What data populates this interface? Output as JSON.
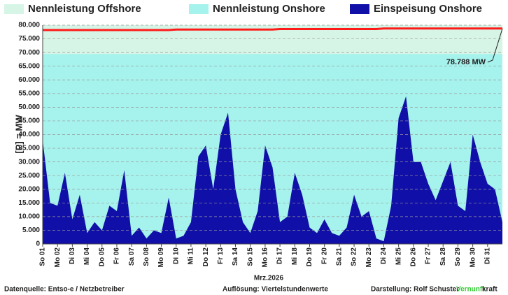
{
  "chart_data": {
    "type": "area",
    "xlabel": "Mrz.2026",
    "ylabel": "[P] = MW",
    "annotation": "78.788 MW",
    "footer": {
      "source": "Datenquelle:  Entso-e  / Netzbetreiber",
      "resolution": "Auflösung: Viertelstundenwerte",
      "author": "Darstellung:  Rolf Schuster",
      "brand_a": "Vernunft",
      "brand_b": "kraft"
    },
    "x": [
      1,
      1.5,
      2,
      2.5,
      3,
      3.5,
      4,
      4.5,
      5,
      5.5,
      6,
      6.5,
      7,
      7.5,
      8,
      8.5,
      9,
      9.5,
      10,
      10.5,
      11,
      11.5,
      12,
      12.5,
      13,
      13.5,
      14,
      14.5,
      15,
      15.5,
      16,
      16.5,
      17,
      17.5,
      18,
      18.5,
      19,
      19.5,
      20,
      20.5,
      21,
      21.5,
      22,
      22.5,
      23,
      23.5,
      24,
      24.5,
      25,
      25.5,
      26,
      26.5,
      27,
      27.5,
      28,
      28.5,
      29,
      29.5,
      30,
      30.5,
      31,
      31.5,
      32
    ],
    "series": [
      {
        "name": "Nennleistung Offshore",
        "color": "#d6f5e6",
        "line_color": "#ff1a1a",
        "values": [
          8700,
          8700,
          8700,
          8700,
          8700,
          8700,
          8700,
          8700,
          8700,
          8700,
          8700,
          8700,
          8700,
          8700,
          8700,
          8700,
          8700,
          8700,
          8900,
          8900,
          8900,
          8900,
          8900,
          8900,
          8900,
          8900,
          8900,
          8900,
          8900,
          8900,
          8900,
          8900,
          9100,
          9100,
          9100,
          9100,
          9100,
          9100,
          9100,
          9100,
          9100,
          9100,
          9100,
          9100,
          9100,
          9100,
          9288,
          9288,
          9288,
          9288,
          9288,
          9288,
          9288,
          9288,
          9288,
          9288,
          9288,
          9288,
          9288,
          9288,
          9288,
          9288,
          9288
        ]
      },
      {
        "name": "Nennleistung Onshore",
        "color": "#a6f2ec",
        "values": [
          69500,
          69500,
          69500,
          69500,
          69500,
          69500,
          69500,
          69500,
          69500,
          69500,
          69500,
          69500,
          69500,
          69500,
          69500,
          69500,
          69500,
          69500,
          69500,
          69500,
          69500,
          69500,
          69500,
          69500,
          69500,
          69500,
          69500,
          69500,
          69500,
          69500,
          69500,
          69500,
          69500,
          69500,
          69500,
          69500,
          69500,
          69500,
          69500,
          69500,
          69500,
          69500,
          69500,
          69500,
          69500,
          69500,
          69500,
          69500,
          69500,
          69500,
          69500,
          69500,
          69500,
          69500,
          69500,
          69500,
          69500,
          69500,
          69500,
          69500,
          69500,
          69500,
          69500
        ]
      },
      {
        "name": "Einspeisung Onshore",
        "color": "#1010a8",
        "values": [
          38000,
          15000,
          14000,
          26000,
          9000,
          18000,
          4000,
          8000,
          5000,
          14000,
          12000,
          27000,
          3000,
          6000,
          2000,
          5000,
          4000,
          17000,
          2000,
          3000,
          8000,
          32000,
          36000,
          20000,
          40000,
          48000,
          20000,
          8000,
          4000,
          12000,
          36000,
          28000,
          8000,
          10000,
          26000,
          18000,
          6000,
          4000,
          9000,
          4000,
          3000,
          6000,
          18000,
          10000,
          12000,
          2000,
          1000,
          14000,
          46000,
          54000,
          30000,
          30000,
          22000,
          16000,
          23000,
          30000,
          14000,
          12000,
          40000,
          30000,
          22000,
          20000,
          8000
        ]
      }
    ],
    "xlim": [
      1,
      32
    ],
    "xticks": [
      {
        "value": 1,
        "label": "So 01"
      },
      {
        "value": 2,
        "label": "Mo 02"
      },
      {
        "value": 3,
        "label": "Di 03"
      },
      {
        "value": 4,
        "label": "Mi 04"
      },
      {
        "value": 5,
        "label": "Do 05"
      },
      {
        "value": 6,
        "label": "Fr 06"
      },
      {
        "value": 7,
        "label": "Sa 07"
      },
      {
        "value": 8,
        "label": "So 08"
      },
      {
        "value": 9,
        "label": "Mo 09"
      },
      {
        "value": 10,
        "label": "Di 10"
      },
      {
        "value": 11,
        "label": "Mi 11"
      },
      {
        "value": 12,
        "label": "Do 12"
      },
      {
        "value": 13,
        "label": "Fr 13"
      },
      {
        "value": 14,
        "label": "Sa 14"
      },
      {
        "value": 15,
        "label": "So 15"
      },
      {
        "value": 16,
        "label": "Mo 16"
      },
      {
        "value": 17,
        "label": "Di 17"
      },
      {
        "value": 18,
        "label": "Mi 18"
      },
      {
        "value": 19,
        "label": "Do 19"
      },
      {
        "value": 20,
        "label": "Fr 20"
      },
      {
        "value": 21,
        "label": "Sa 21"
      },
      {
        "value": 22,
        "label": "So 22"
      },
      {
        "value": 23,
        "label": "Mo 23"
      },
      {
        "value": 24,
        "label": "Di 24"
      },
      {
        "value": 25,
        "label": "Mi 25"
      },
      {
        "value": 26,
        "label": "Do 26"
      },
      {
        "value": 27,
        "label": "Fr 27"
      },
      {
        "value": 28,
        "label": "Sa 28"
      },
      {
        "value": 29,
        "label": "So 29"
      },
      {
        "value": 30,
        "label": "Mo 30"
      },
      {
        "value": 31,
        "label": "Di 31"
      }
    ],
    "ylim": [
      0,
      80000
    ],
    "yticks": [
      0,
      {
        "value": 5000,
        "label": "5.000"
      },
      {
        "value": 10000,
        "label": "10.000"
      },
      {
        "value": 15000,
        "label": "15.000"
      },
      {
        "value": 20000,
        "label": "20.000"
      },
      {
        "value": 25000,
        "label": "25.000"
      },
      {
        "value": 30000,
        "label": "30.000"
      },
      {
        "value": 35000,
        "label": "35.000"
      },
      {
        "value": 40000,
        "label": "40.000"
      },
      {
        "value": 45000,
        "label": "45.000"
      },
      {
        "value": 50000,
        "label": "50.000"
      },
      {
        "value": 55000,
        "label": "55.000"
      },
      {
        "value": 60000,
        "label": "60.000"
      },
      {
        "value": 65000,
        "label": "65.000"
      },
      {
        "value": 70000,
        "label": "70.000"
      },
      {
        "value": 75000,
        "label": "75.000"
      },
      {
        "value": 80000,
        "label": "80.000"
      }
    ],
    "grid": true,
    "legend": "top",
    "brand_color": "#33cc33"
  }
}
